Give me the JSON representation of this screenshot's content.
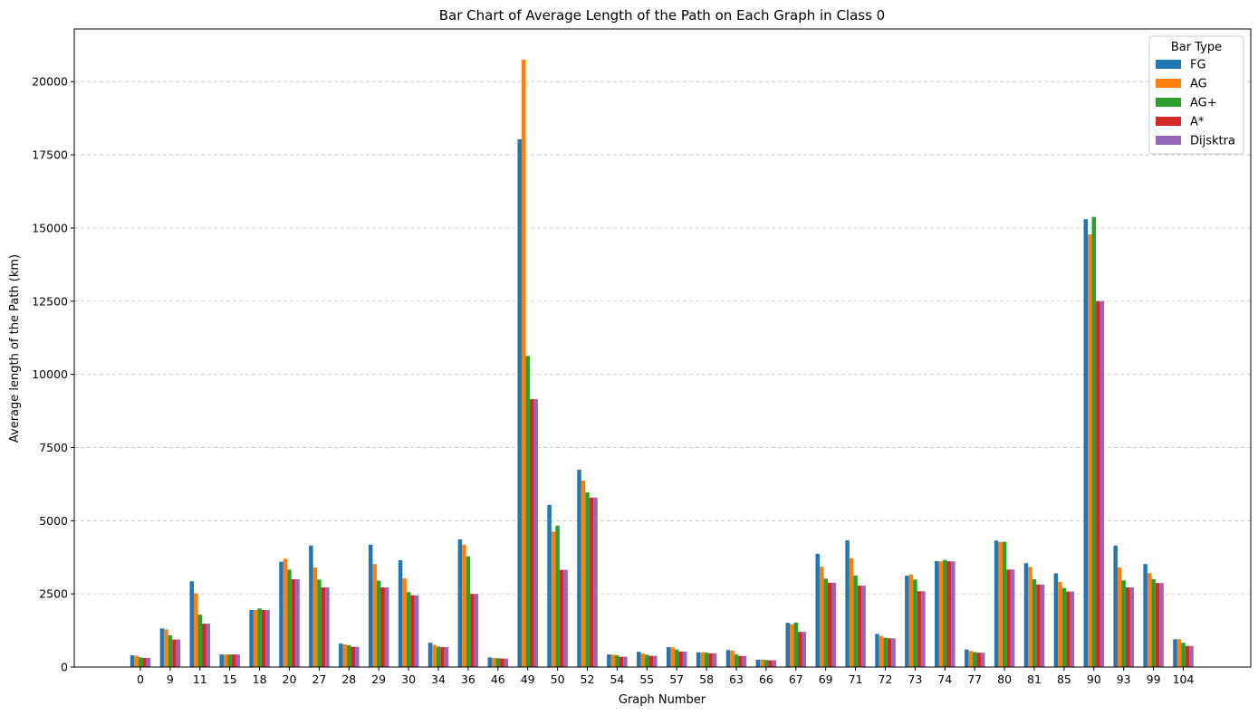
{
  "chart_data": {
    "type": "bar",
    "title": "Bar Chart of Average Length of the Path on Each Graph in Class 0",
    "xlabel": "Graph Number",
    "ylabel": "Average length of the Path (km)",
    "ylim": [
      0,
      21800
    ],
    "yticks": [
      0,
      2500,
      5000,
      7500,
      10000,
      12500,
      15000,
      17500,
      20000
    ],
    "grid": "y-dashed",
    "legend_title": "Bar Type",
    "legend_position": "top-right",
    "categories": [
      "0",
      "9",
      "11",
      "15",
      "18",
      "20",
      "27",
      "28",
      "29",
      "30",
      "34",
      "36",
      "46",
      "49",
      "50",
      "52",
      "54",
      "55",
      "57",
      "58",
      "63",
      "66",
      "67",
      "69",
      "71",
      "72",
      "73",
      "74",
      "77",
      "80",
      "81",
      "85",
      "90",
      "93",
      "99",
      "104"
    ],
    "series": [
      {
        "name": "FG",
        "color": "#1f77b4",
        "values": [
          400,
          1320,
          2930,
          430,
          1950,
          3600,
          4150,
          800,
          4180,
          3650,
          830,
          4360,
          330,
          18030,
          5540,
          6740,
          430,
          520,
          680,
          500,
          580,
          250,
          1510,
          3870,
          4330,
          1130,
          3120,
          3620,
          600,
          4320,
          3550,
          3200,
          15300,
          4150,
          3520,
          950
        ]
      },
      {
        "name": "AG",
        "color": "#ff7f0e",
        "values": [
          380,
          1290,
          2520,
          430,
          1950,
          3700,
          3400,
          770,
          3520,
          3030,
          760,
          4180,
          310,
          20750,
          4630,
          6370,
          420,
          460,
          670,
          500,
          560,
          250,
          1460,
          3430,
          3720,
          1060,
          3160,
          3610,
          550,
          4270,
          3420,
          2910,
          14780,
          3400,
          3210,
          950
        ]
      },
      {
        "name": "AG+",
        "color": "#2ca02c",
        "values": [
          330,
          1080,
          1790,
          430,
          2000,
          3330,
          2990,
          740,
          2950,
          2560,
          700,
          3780,
          300,
          10630,
          4830,
          5970,
          400,
          420,
          600,
          490,
          430,
          240,
          1520,
          3020,
          3130,
          1000,
          2990,
          3660,
          510,
          4280,
          3000,
          2700,
          15380,
          2960,
          3000,
          830
        ]
      },
      {
        "name": "A*",
        "color": "#d62728",
        "values": [
          310,
          940,
          1480,
          430,
          1950,
          3000,
          2720,
          690,
          2720,
          2450,
          680,
          2500,
          290,
          9150,
          3320,
          5790,
          350,
          380,
          530,
          470,
          380,
          230,
          1200,
          2880,
          2780,
          980,
          2590,
          3610,
          490,
          3330,
          2820,
          2580,
          12500,
          2720,
          2870,
          720
        ]
      },
      {
        "name": "Dijsktra",
        "color": "#9467bd",
        "values": [
          310,
          940,
          1480,
          430,
          1950,
          3000,
          2720,
          690,
          2720,
          2450,
          680,
          2500,
          290,
          9150,
          3320,
          5790,
          350,
          380,
          530,
          470,
          380,
          230,
          1200,
          2880,
          2780,
          980,
          2590,
          3610,
          490,
          3330,
          2820,
          2580,
          12500,
          2720,
          2870,
          720
        ]
      }
    ]
  }
}
